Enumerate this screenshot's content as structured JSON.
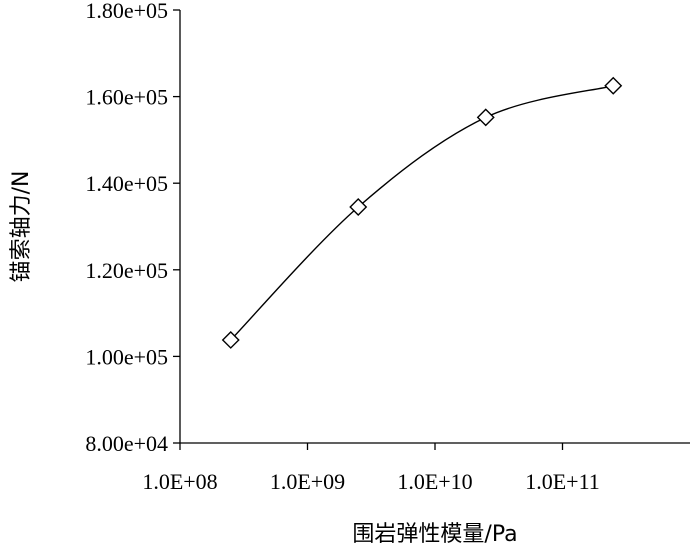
{
  "chart_data": {
    "type": "line",
    "xlabel": "围岩弹性模量/Pa",
    "ylabel": "锚索轴力/N",
    "xscale": "log",
    "xlim": [
      100000000.0,
      1000000000000.0
    ],
    "ylim": [
      80000,
      180000
    ],
    "x_ticks": [
      {
        "value": 100000000.0,
        "label": "1.0E+08"
      },
      {
        "value": 1000000000.0,
        "label": "1.0E+09"
      },
      {
        "value": 10000000000.0,
        "label": "1.0E+10"
      },
      {
        "value": 100000000000.0,
        "label": "1.0E+11"
      }
    ],
    "y_ticks": [
      {
        "value": 80000,
        "label": "8.00e+04"
      },
      {
        "value": 100000,
        "label": "1.00e+05"
      },
      {
        "value": 120000,
        "label": "1.20e+05"
      },
      {
        "value": 140000,
        "label": "1.40e+05"
      },
      {
        "value": 160000,
        "label": "1.60e+05"
      },
      {
        "value": 180000,
        "label": "1.80e+05"
      }
    ],
    "grid": false,
    "legend": "none",
    "marker": "diamond",
    "smooth": true,
    "series": [
      {
        "x": [
          250000000.0,
          2500000000.0,
          25000000000.0,
          250000000000.0
        ],
        "y": [
          103800,
          134500,
          155200,
          162500
        ]
      }
    ]
  }
}
